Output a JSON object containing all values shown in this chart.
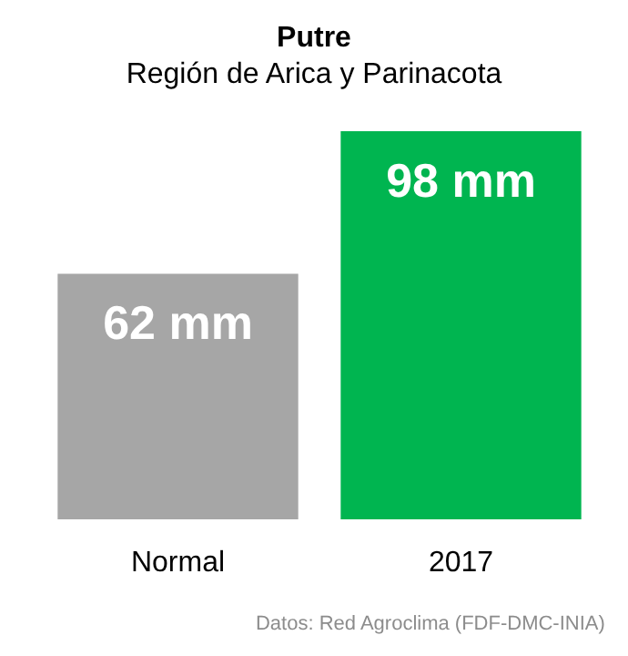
{
  "chart_data": {
    "type": "bar",
    "title": "Putre",
    "subtitle": "Región de Arica y Parinacota",
    "categories": [
      "Normal",
      "2017"
    ],
    "values": [
      62,
      98
    ],
    "colors": [
      "#a6a6a6",
      "#00b550"
    ],
    "value_labels": [
      "62 mm",
      "98 mm"
    ],
    "annotations": [
      "Datos: Red Agroclima (FDF-DMC-INIA)"
    ]
  }
}
